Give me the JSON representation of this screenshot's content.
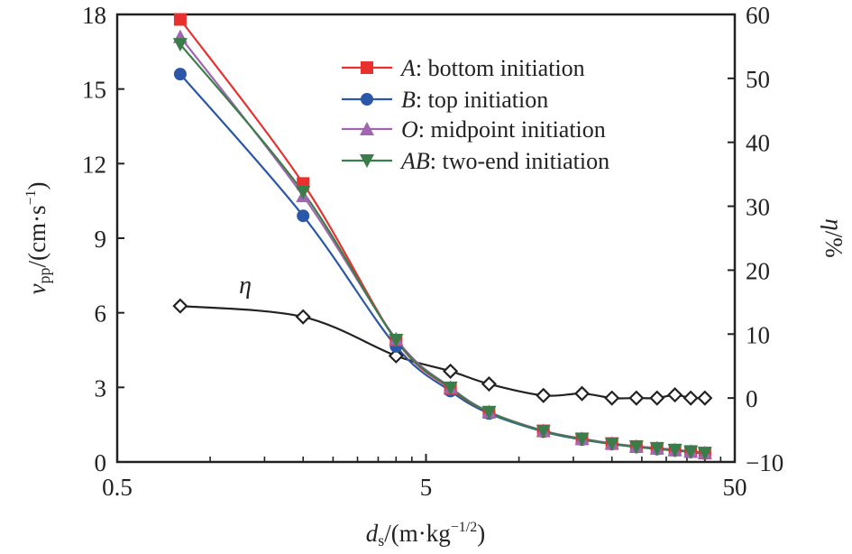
{
  "chart_data": {
    "type": "line",
    "x_scale": "log",
    "xlabel": {
      "main": "d",
      "sub": "s",
      "unit_prefix": "/(m·kg",
      "unit_sup": "−1/2",
      "unit_suffix": ")"
    },
    "ylabel_left": {
      "main": "v",
      "sub": "pp",
      "unit_prefix": "/(cm·s",
      "unit_sup": "−1",
      "unit_suffix": ")"
    },
    "ylabel_right": {
      "main": "η",
      "unit": "/%"
    },
    "xlim": [
      0.5,
      50
    ],
    "ylim_left": [
      0,
      18
    ],
    "ylim_right": [
      -10,
      60
    ],
    "x_ticks": [
      0.5,
      5,
      50
    ],
    "x_tick_labels": [
      "0.5",
      "5",
      "50"
    ],
    "y_left_ticks": [
      0,
      3,
      6,
      9,
      12,
      15,
      18
    ],
    "y_left_tick_labels": [
      "0",
      "3",
      "6",
      "9",
      "12",
      "15",
      "18"
    ],
    "y_right_ticks": [
      -10,
      0,
      10,
      20,
      30,
      40,
      50,
      60
    ],
    "y_right_tick_labels": [
      "−10",
      "0",
      "10",
      "20",
      "30",
      "40",
      "50",
      "60"
    ],
    "grid": false,
    "legend_position": "top-right",
    "x": [
      0.8,
      2,
      4,
      6,
      8,
      12,
      16,
      20,
      24,
      28,
      32,
      36,
      40
    ],
    "series": [
      {
        "name": "A",
        "label_rest": ": bottom initiation",
        "axis": "left",
        "marker": "square",
        "color": "#e8312f",
        "values": [
          17.8,
          11.2,
          4.9,
          2.95,
          2.0,
          1.25,
          0.93,
          0.74,
          0.62,
          0.55,
          0.48,
          0.42,
          0.36
        ]
      },
      {
        "name": "B",
        "label_rest": ": top initiation",
        "axis": "left",
        "marker": "circle",
        "color": "#2b57a8",
        "values": [
          15.6,
          9.9,
          4.65,
          2.85,
          1.95,
          1.22,
          0.9,
          0.72,
          0.6,
          0.52,
          0.46,
          0.4,
          0.34
        ]
      },
      {
        "name": "O",
        "label_rest": ": midpoint initiation",
        "axis": "left",
        "marker": "triangle-up",
        "color": "#a066b0",
        "values": [
          17.1,
          10.7,
          4.95,
          3.0,
          2.02,
          1.26,
          0.94,
          0.75,
          0.63,
          0.56,
          0.49,
          0.43,
          0.37
        ]
      },
      {
        "name": "AB",
        "label_rest": ": two-end initiation",
        "axis": "left",
        "marker": "triangle-down",
        "color": "#3b7d4a",
        "values": [
          16.8,
          10.85,
          4.9,
          2.98,
          2.0,
          1.24,
          0.92,
          0.73,
          0.61,
          0.54,
          0.47,
          0.41,
          0.35
        ]
      },
      {
        "name": "η",
        "axis": "right",
        "marker": "diamond-open",
        "color": "#222222",
        "in_legend": false,
        "values": [
          14.4,
          12.7,
          6.6,
          4.2,
          2.2,
          0.4,
          0.7,
          0.0,
          0.0,
          0.0,
          0.5,
          0.0,
          0.0
        ]
      }
    ],
    "annotations": [
      {
        "text": "η",
        "near_series": "η",
        "x": 1.3,
        "y_right": 17.5
      }
    ]
  }
}
